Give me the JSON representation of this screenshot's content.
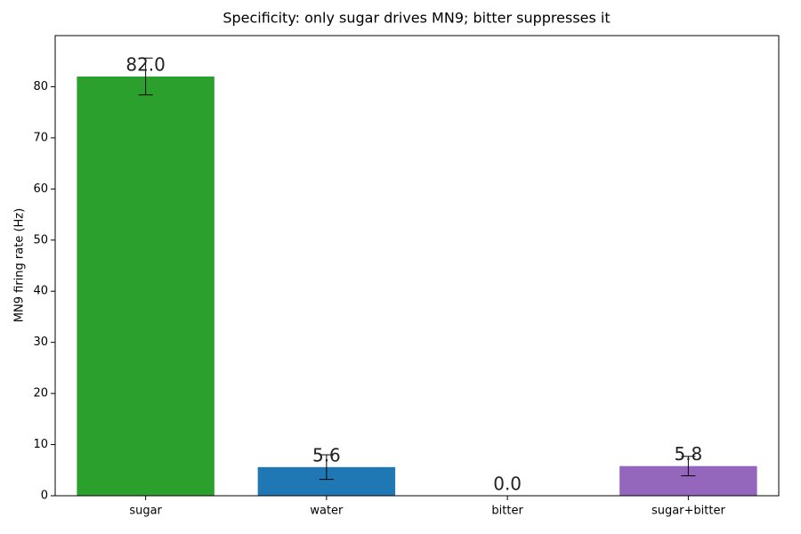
{
  "chart_data": {
    "type": "bar",
    "title": "Specificity: only sugar drives MN9; bitter suppresses it",
    "y_label": "MN9 firing rate (Hz)",
    "categories": [
      "sugar",
      "water",
      "bitter",
      "sugar+bitter"
    ],
    "values": [
      82.0,
      5.6,
      0.0,
      5.8
    ],
    "value_labels": [
      "82.0",
      "5.6",
      "0.0",
      "5.8"
    ],
    "errors": [
      3.6,
      2.4,
      0.0,
      1.9
    ],
    "colors": [
      "#2ca02c",
      "#1f77b4",
      "#d62728",
      "#9467bd"
    ],
    "ylim": [
      0,
      90
    ],
    "yticks": [
      0,
      10,
      20,
      30,
      40,
      50,
      60,
      70,
      80
    ],
    "grid": false
  }
}
